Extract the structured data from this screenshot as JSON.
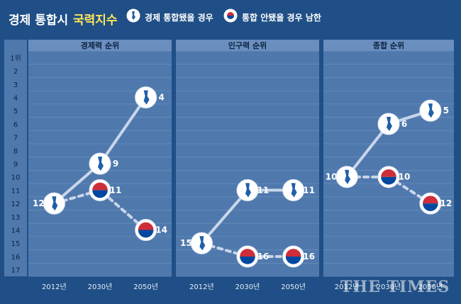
{
  "header": {
    "title_main": "경제 통합시",
    "title_highlight": "국력지수",
    "legend_unified": "경제 통합됐을 경우",
    "legend_south": "통합 안됐을 경우 남한"
  },
  "colors": {
    "background": "#1f4f86",
    "panel": "#4f79ad",
    "panel_header": "#6a8fbf",
    "line": "#c9d6ea",
    "title_highlight": "#ffe55a"
  },
  "y_axis_ticks": [
    "1위",
    "2",
    "3",
    "4",
    "5",
    "6",
    "7",
    "8",
    "9",
    "10",
    "11",
    "12",
    "13",
    "14",
    "15",
    "16",
    "17"
  ],
  "watermark": "THE TIMES",
  "chart_data": [
    {
      "type": "line",
      "title": "경제력 순위",
      "categories": [
        "2012년",
        "2030년",
        "2050년"
      ],
      "y_reversed": true,
      "ylim": [
        1,
        17
      ],
      "series": [
        {
          "name": "경제 통합됐을 경우",
          "values": [
            12,
            9,
            4
          ],
          "line_style": "solid"
        },
        {
          "name": "통합 안됐을 경우 남한",
          "values": [
            12,
            11,
            14
          ],
          "line_style": "dashed"
        }
      ]
    },
    {
      "type": "line",
      "title": "인구력 순위",
      "categories": [
        "2012년",
        "2030년",
        "2050년"
      ],
      "y_reversed": true,
      "ylim": [
        1,
        17
      ],
      "series": [
        {
          "name": "경제 통합됐을 경우",
          "values": [
            15,
            11,
            11
          ],
          "line_style": "solid"
        },
        {
          "name": "통합 안됐을 경우 남한",
          "values": [
            15,
            16,
            16
          ],
          "line_style": "dashed"
        }
      ]
    },
    {
      "type": "line",
      "title": "종합 순위",
      "categories": [
        "2012년",
        "2030년",
        "2050년"
      ],
      "y_reversed": true,
      "ylim": [
        1,
        17
      ],
      "series": [
        {
          "name": "경제 통합됐을 경우",
          "values": [
            10,
            6,
            5
          ],
          "line_style": "solid"
        },
        {
          "name": "통합 안됐을 경우 남한",
          "values": [
            10,
            10,
            12
          ],
          "line_style": "dashed"
        }
      ]
    }
  ]
}
